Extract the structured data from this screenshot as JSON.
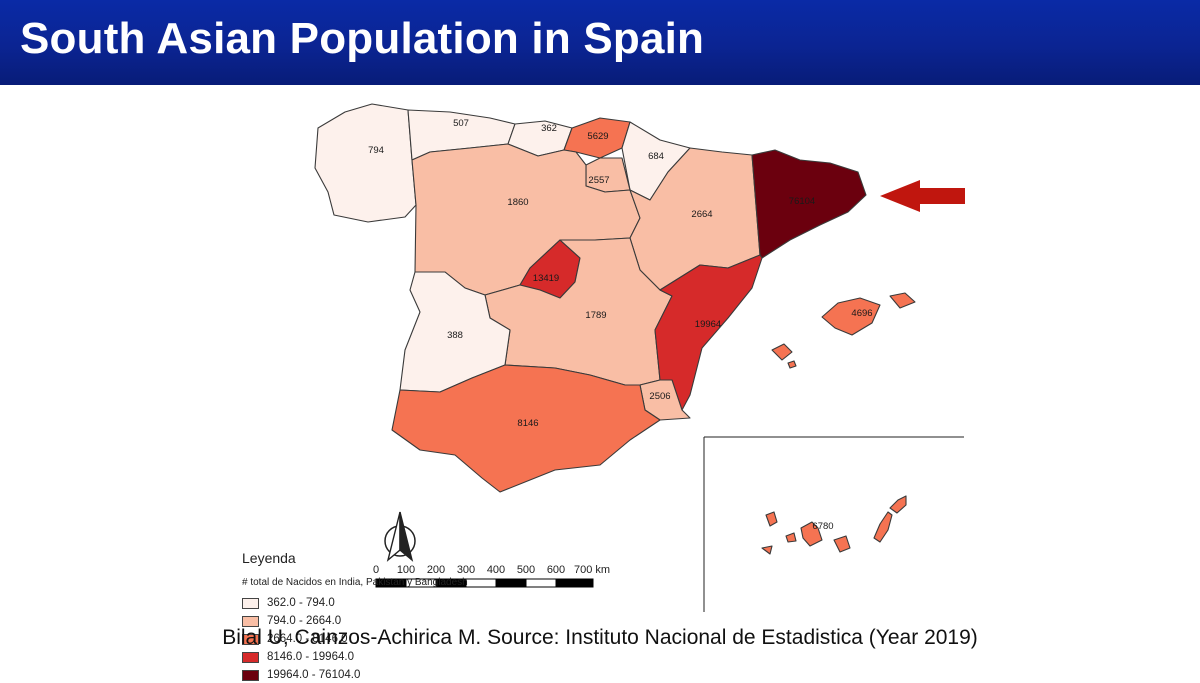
{
  "header": {
    "title": "South Asian Population in Spain"
  },
  "map": {
    "regions": [
      {
        "id": "galicia",
        "value": "794",
        "class": 1
      },
      {
        "id": "asturias",
        "value": "507",
        "class": 1
      },
      {
        "id": "cantabria",
        "value": "362",
        "class": 1
      },
      {
        "id": "pais-vasco",
        "value": "5629",
        "class": 3
      },
      {
        "id": "navarra",
        "value": "684",
        "class": 1
      },
      {
        "id": "la-rioja",
        "value": "2557",
        "class": 2
      },
      {
        "id": "castilla-y-leon",
        "value": "1860",
        "class": 2
      },
      {
        "id": "aragon",
        "value": "2664",
        "class": 2
      },
      {
        "id": "cataluna",
        "value": "76104",
        "class": 5
      },
      {
        "id": "madrid",
        "value": "13419",
        "class": 4
      },
      {
        "id": "castilla-la-mancha",
        "value": "1789",
        "class": 2
      },
      {
        "id": "valencia",
        "value": "19964",
        "class": 4
      },
      {
        "id": "extremadura",
        "value": "388",
        "class": 1
      },
      {
        "id": "baleares",
        "value": "4696",
        "class": 3
      },
      {
        "id": "murcia",
        "value": "2506",
        "class": 2
      },
      {
        "id": "andalucia",
        "value": "8146",
        "class": 3
      },
      {
        "id": "canarias",
        "value": "6780",
        "class": 3
      }
    ],
    "class_colors": {
      "1": "#fdf1ec",
      "2": "#f9bea5",
      "3": "#f57352",
      "4": "#d62a2a",
      "5": "#6b000e"
    },
    "arrow_color": "#c0160e"
  },
  "legend": {
    "title": "Leyenda",
    "subtitle": "# total de Nacidos en India, Pakistan y Bangladesh",
    "items": [
      {
        "label": "362.0 - 794.0",
        "color": "#fdf1ec"
      },
      {
        "label": "794.0 - 2664.0",
        "color": "#f9bea5"
      },
      {
        "label": "2664.0 - 8146.0",
        "color": "#f57352"
      },
      {
        "label": "8146.0 - 19964.0",
        "color": "#d62a2a"
      },
      {
        "label": "19964.0 - 76104.0",
        "color": "#6b000e"
      }
    ]
  },
  "scale_bar": {
    "ticks": [
      "0",
      "100",
      "200",
      "300",
      "400",
      "500",
      "600",
      "700 km"
    ]
  },
  "citation": "Bilal U, Cainzos-Achirica M. Source: Instituto Nacional de Estadistica (Year 2019)"
}
